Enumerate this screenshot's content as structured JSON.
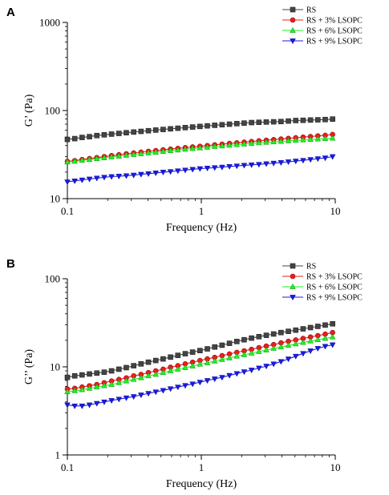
{
  "panels": [
    {
      "label": "A",
      "chart_data": {
        "type": "line",
        "x": [
          0.1,
          0.1135,
          0.1288,
          0.1462,
          0.1659,
          0.1884,
          0.2137,
          0.2426,
          0.2754,
          0.3126,
          0.3548,
          0.4027,
          0.4571,
          0.5188,
          0.5888,
          0.6683,
          0.7586,
          0.861,
          0.9772,
          1.109,
          1.259,
          1.429,
          1.622,
          1.841,
          2.089,
          2.371,
          2.692,
          3.055,
          3.467,
          3.936,
          4.467,
          5.07,
          5.754,
          6.531,
          7.413,
          8.414,
          9.55
        ],
        "series": [
          {
            "name": "RS",
            "color": "#444444",
            "marker": "square",
            "values": [
              47,
              48,
              49.5,
              50.5,
              52,
              53,
              54,
              55,
              56,
              57,
              58,
              59,
              60,
              61,
              62,
              63,
              64,
              65,
              66,
              67,
              68,
              69,
              70,
              71,
              72,
              73,
              73.5,
              74,
              74.5,
              75,
              76,
              77,
              77.5,
              78,
              78.5,
              79,
              80
            ]
          },
          {
            "name": "RS + 3% LSOPC",
            "color": "#ee1c1c",
            "marker": "circle",
            "values": [
              26.5,
              27,
              27.8,
              28.5,
              29.2,
              30,
              30.8,
              31.5,
              32.3,
              33,
              33.7,
              34.4,
              35.1,
              35.8,
              36.5,
              37.2,
              37.9,
              38.6,
              39.3,
              40,
              40.8,
              41.5,
              42.3,
              43,
              43.8,
              44.5,
              45.3,
              46,
              46.8,
              47.5,
              48.3,
              49.1,
              49.9,
              50.7,
              51.5,
              52.3,
              53.5
            ]
          },
          {
            "name": "RS + 6% LSOPC",
            "color": "#22ee22",
            "marker": "triangle-up",
            "values": [
              26,
              26.5,
              27.2,
              27.8,
              28.4,
              29,
              29.7,
              30.3,
              31,
              31.6,
              32.3,
              33,
              33.6,
              34.3,
              35,
              35.6,
              36.3,
              37,
              37.6,
              38.3,
              39,
              39.6,
              40.3,
              41,
              41.6,
              42.3,
              43,
              43.5,
              44,
              44.6,
              45.2,
              45.8,
              46.3,
              46.9,
              47.5,
              48,
              48.5
            ]
          },
          {
            "name": "RS + 9% LSOPC",
            "color": "#1a1ae6",
            "marker": "triangle-down",
            "values": [
              15.5,
              15.9,
              16.3,
              16.7,
              17.1,
              17.5,
              17.8,
              18,
              18.2,
              18.5,
              18.9,
              19.2,
              19.6,
              20,
              20.3,
              20.7,
              21.1,
              21.5,
              21.9,
              22.2,
              22.5,
              22.8,
              23.2,
              23.5,
              23.9,
              24.2,
              24.5,
              24.9,
              25.3,
              25.7,
              26.2,
              26.7,
              27.2,
              27.8,
              28.4,
              29,
              30
            ]
          }
        ],
        "xlabel": "Frequency (Hz)",
        "ylabel": "G’ (Pa)",
        "xscale": "log",
        "yscale": "log",
        "xlim": [
          0.1,
          10
        ],
        "ylim": [
          10,
          1000
        ],
        "xticks": [
          "0.1",
          "1",
          "10"
        ],
        "yticks": [
          "10",
          "100",
          "1000"
        ],
        "grid": false,
        "legend_position": "top-right"
      }
    },
    {
      "label": "B",
      "chart_data": {
        "type": "line",
        "x": [
          0.1,
          0.1135,
          0.1288,
          0.1462,
          0.1659,
          0.1884,
          0.2137,
          0.2426,
          0.2754,
          0.3126,
          0.3548,
          0.4027,
          0.4571,
          0.5188,
          0.5888,
          0.6683,
          0.7586,
          0.861,
          0.9772,
          1.109,
          1.259,
          1.429,
          1.622,
          1.841,
          2.089,
          2.371,
          2.692,
          3.055,
          3.467,
          3.936,
          4.467,
          5.07,
          5.754,
          6.531,
          7.413,
          8.414,
          9.55
        ],
        "series": [
          {
            "name": "RS",
            "color": "#444444",
            "marker": "square",
            "values": [
              7.6,
              7.9,
              8.1,
              8.3,
              8.5,
              8.7,
              9,
              9.4,
              9.8,
              10.3,
              10.8,
              11.3,
              11.8,
              12.3,
              12.9,
              13.5,
              14.1,
              14.7,
              15.3,
              16,
              16.8,
              17.6,
              18.5,
              19.4,
              20.3,
              21.2,
              22,
              22.8,
              23.6,
              24.5,
              25.3,
              26.1,
              27,
              27.9,
              28.8,
              29.8,
              30.8
            ]
          },
          {
            "name": "RS + 3% LSOPC",
            "color": "#ee1c1c",
            "marker": "circle",
            "values": [
              5.6,
              5.7,
              5.9,
              6.1,
              6.3,
              6.6,
              6.9,
              7.2,
              7.5,
              7.9,
              8.2,
              8.6,
              9,
              9.4,
              9.9,
              10.3,
              10.8,
              11.3,
              11.8,
              12.3,
              12.8,
              13.4,
              14,
              14.6,
              15.2,
              15.8,
              16.5,
              17.2,
              17.9,
              18.7,
              19.5,
              20.2,
              21,
              21.8,
              22.6,
              23.5,
              24.5
            ]
          },
          {
            "name": "RS + 6% LSOPC",
            "color": "#22ee22",
            "marker": "triangle-up",
            "values": [
              5.2,
              5.35,
              5.5,
              5.7,
              5.9,
              6.1,
              6.3,
              6.6,
              6.9,
              7.2,
              7.5,
              7.9,
              8.2,
              8.6,
              9,
              9.4,
              9.8,
              10.2,
              10.7,
              11.1,
              11.6,
              12.1,
              12.6,
              13.2,
              13.7,
              14.3,
              14.9,
              15.5,
              16.2,
              16.8,
              17.5,
              18.2,
              18.9,
              19.6,
              20.3,
              21,
              21.8
            ]
          },
          {
            "name": "RS + 9% LSOPC",
            "color": "#1a1ae6",
            "marker": "triangle-down",
            "values": [
              3.7,
              3.6,
              3.6,
              3.7,
              3.85,
              4,
              4.15,
              4.3,
              4.45,
              4.6,
              4.8,
              5,
              5.2,
              5.4,
              5.65,
              5.9,
              6.15,
              6.4,
              6.7,
              7,
              7.3,
              7.6,
              8,
              8.4,
              8.8,
              9.2,
              9.7,
              10.2,
              10.8,
              11.5,
              12.3,
              13.2,
              14.2,
              15.2,
              16.2,
              17.1,
              17.8
            ]
          }
        ],
        "xlabel": "Frequency (Hz)",
        "ylabel": "G’’ (Pa)",
        "xscale": "log",
        "yscale": "log",
        "xlim": [
          0.1,
          10
        ],
        "ylim": [
          1,
          100
        ],
        "xticks": [
          "0.1",
          "1",
          "10"
        ],
        "yticks": [
          "1",
          "10",
          "100"
        ],
        "grid": false,
        "legend_position": "top-right"
      }
    }
  ]
}
